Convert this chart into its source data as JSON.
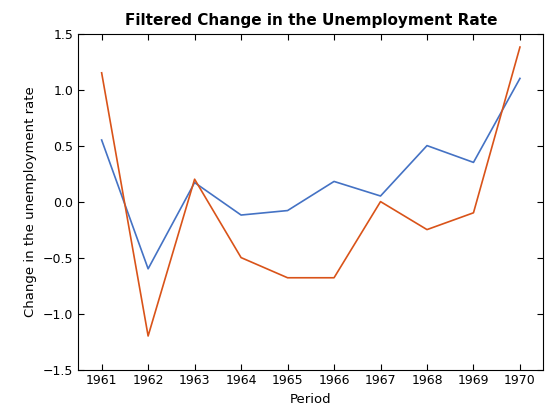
{
  "title": "Filtered Change in the Unemployment Rate",
  "xlabel": "Period",
  "ylabel": "Change in the unemployment rate",
  "xlim": [
    1960.5,
    1970.5
  ],
  "ylim": [
    -1.5,
    1.5
  ],
  "xticks": [
    1961,
    1962,
    1963,
    1964,
    1965,
    1966,
    1967,
    1968,
    1969,
    1970
  ],
  "yticks": [
    -1.5,
    -1.0,
    -0.5,
    0.0,
    0.5,
    1.0,
    1.5
  ],
  "blue_line": {
    "x": [
      1961,
      1962,
      1963,
      1964,
      1965,
      1966,
      1967,
      1968,
      1969,
      1970
    ],
    "y": [
      0.55,
      -0.6,
      0.17,
      -0.12,
      -0.08,
      0.18,
      0.05,
      0.5,
      0.35,
      1.1
    ],
    "color": "#4472C4",
    "linewidth": 1.2
  },
  "orange_line": {
    "x": [
      1961,
      1962,
      1963,
      1964,
      1965,
      1966,
      1967,
      1968,
      1969,
      1970
    ],
    "y": [
      1.15,
      -1.2,
      0.2,
      -0.5,
      -0.68,
      -0.68,
      0.0,
      -0.25,
      -0.1,
      1.38
    ],
    "color": "#D95319",
    "linewidth": 1.2
  },
  "background_color": "#FFFFFF",
  "title_fontsize": 11,
  "label_fontsize": 9.5,
  "tick_fontsize": 9
}
